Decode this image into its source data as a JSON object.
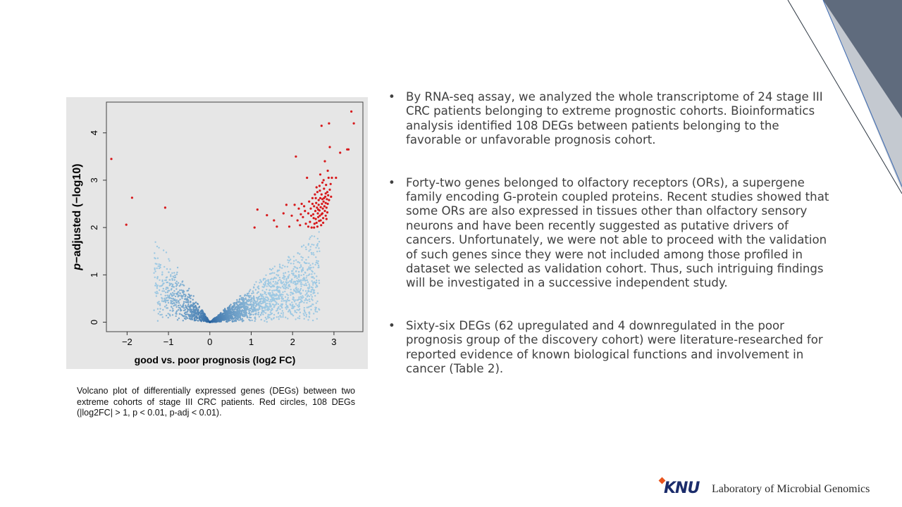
{
  "chart_data": {
    "type": "scatter",
    "title": "",
    "xlabel": "good vs. poor prognosis (log2 FC)",
    "ylabel": "p−adjusted (−log10)",
    "ylabel_italic_part": "p",
    "ylabel_rest": "−adjusted (−log10)",
    "xlim": [
      -2.5,
      3.7
    ],
    "ylim": [
      -0.2,
      4.65
    ],
    "x_ticks": [
      -2,
      -1,
      0,
      1,
      2,
      3
    ],
    "x_tick_labels": [
      "−2",
      "−1",
      "0",
      "1",
      "2",
      "3"
    ],
    "y_ticks": [
      0,
      1,
      2,
      3,
      4
    ],
    "y_tick_labels": [
      "0",
      "1",
      "2",
      "3",
      "4"
    ],
    "grid": false,
    "legend": "none",
    "colors": {
      "non_significant_light": "#9ec9e3",
      "non_significant_dark": "#1f5a99",
      "significant": "#d7191c",
      "panel_background": "#e6e6e6"
    },
    "series": [
      {
        "name": "Red circles, 108 DEGs",
        "color": "#d7191c",
        "points": [
          [
            -2.38,
            3.45
          ],
          [
            -2.02,
            2.06
          ],
          [
            -1.88,
            2.63
          ],
          [
            -1.08,
            2.42
          ],
          [
            1.08,
            2.0
          ],
          [
            1.15,
            2.38
          ],
          [
            1.38,
            2.26
          ],
          [
            1.55,
            2.15
          ],
          [
            1.62,
            2.02
          ],
          [
            1.78,
            2.3
          ],
          [
            1.85,
            2.48
          ],
          [
            1.92,
            2.02
          ],
          [
            1.98,
            2.25
          ],
          [
            2.05,
            2.48
          ],
          [
            2.08,
            3.5
          ],
          [
            2.12,
            2.15
          ],
          [
            2.15,
            2.4
          ],
          [
            2.18,
            2.05
          ],
          [
            2.22,
            2.5
          ],
          [
            2.25,
            2.22
          ],
          [
            2.28,
            2.45
          ],
          [
            2.32,
            2.08
          ],
          [
            2.35,
            3.05
          ],
          [
            2.38,
            2.3
          ],
          [
            2.4,
            2.55
          ],
          [
            2.42,
            2.12
          ],
          [
            2.44,
            2.4
          ],
          [
            2.46,
            2.0
          ],
          [
            2.48,
            2.62
          ],
          [
            2.5,
            2.28
          ],
          [
            2.51,
            2.2
          ],
          [
            2.52,
            2.45
          ],
          [
            2.53,
            2.08
          ],
          [
            2.54,
            2.7
          ],
          [
            2.55,
            2.35
          ],
          [
            2.56,
            2.18
          ],
          [
            2.57,
            2.52
          ],
          [
            2.58,
            2.1
          ],
          [
            2.59,
            2.42
          ],
          [
            2.6,
            2.75
          ],
          [
            2.61,
            2.3
          ],
          [
            2.62,
            2.22
          ],
          [
            2.63,
            2.58
          ],
          [
            2.63,
            2.48
          ],
          [
            2.64,
            2.14
          ],
          [
            2.65,
            2.88
          ],
          [
            2.65,
            2.36
          ],
          [
            2.66,
            2.25
          ],
          [
            2.67,
            2.62
          ],
          [
            2.67,
            3.12
          ],
          [
            2.68,
            2.43
          ],
          [
            2.69,
            2.05
          ],
          [
            2.7,
            4.15
          ],
          [
            2.7,
            2.7
          ],
          [
            2.71,
            2.5
          ],
          [
            2.72,
            2.3
          ],
          [
            2.72,
            2.95
          ],
          [
            2.73,
            2.4
          ],
          [
            2.74,
            2.2
          ],
          [
            2.75,
            3.0
          ],
          [
            2.75,
            2.55
          ],
          [
            2.76,
            2.82
          ],
          [
            2.77,
            2.45
          ],
          [
            2.78,
            3.4
          ],
          [
            2.78,
            2.35
          ],
          [
            2.79,
            2.65
          ],
          [
            2.8,
            2.25
          ],
          [
            2.8,
            2.52
          ],
          [
            2.81,
            2.9
          ],
          [
            2.82,
            2.42
          ],
          [
            2.83,
            2.6
          ],
          [
            2.84,
            2.75
          ],
          [
            2.85,
            3.2
          ],
          [
            2.85,
            2.5
          ],
          [
            2.86,
            2.68
          ],
          [
            2.87,
            3.05
          ],
          [
            2.88,
            2.58
          ],
          [
            2.88,
            4.2
          ],
          [
            2.9,
            2.8
          ],
          [
            2.9,
            3.7
          ],
          [
            2.92,
            2.92
          ],
          [
            2.93,
            2.65
          ],
          [
            2.95,
            3.05
          ],
          [
            3.05,
            3.05
          ],
          [
            3.15,
            3.58
          ],
          [
            3.32,
            3.65
          ],
          [
            3.35,
            3.65
          ],
          [
            3.42,
            4.45
          ],
          [
            3.48,
            4.2
          ],
          [
            2.52,
            2.0
          ],
          [
            2.6,
            2.02
          ],
          [
            2.68,
            2.15
          ],
          [
            2.74,
            2.1
          ],
          [
            2.82,
            2.18
          ],
          [
            2.45,
            2.25
          ],
          [
            2.38,
            2.02
          ],
          [
            2.3,
            2.35
          ],
          [
            2.2,
            2.28
          ],
          [
            2.62,
            2.38
          ],
          [
            2.7,
            2.28
          ],
          [
            2.76,
            2.62
          ],
          [
            2.84,
            2.32
          ],
          [
            2.56,
            2.62
          ],
          [
            2.48,
            2.5
          ],
          [
            2.66,
            2.78
          ],
          [
            2.58,
            2.85
          ],
          [
            2.72,
            2.6
          ],
          [
            2.8,
            2.72
          ]
        ]
      }
    ],
    "non_significant_points_note": "dense cloud of ~thousands of genes forming a V shape centered at (0, 0), below p-adj 2"
  },
  "caption": "Volcano plot of differentially expressed genes (DEGs) between two extreme cohorts of stage III CRC patients. Red circles, 108 DEGs (|log2FC| > 1, p < 0.01, p-adj < 0.01).",
  "bullets": [
    "By RNA-seq assay, we analyzed the whole transcriptome of 24 stage III CRC patients belonging to extreme prognostic cohorts. Bioinformatics analysis identified 108 DEGs between patients belonging to the favorable or unfavorable prognosis cohort.",
    "Forty-two genes belonged to olfactory receptors (ORs), a supergene family encoding G-protein coupled proteins. Recent studies showed that some ORs are also expressed in tissues other than olfactory sensory neurons and have been recently suggested as putative drivers of cancers. Unfortunately, we were not able to proceed with the validation of such genes since they were not included among those profiled in dataset we selected as validation cohort. Thus, such intriguing findings will be investigated in a successive independent study.",
    "Sixty-six DEGs (62 upregulated and 4 downregulated in the poor prognosis group of the discovery cohort) were literature-researched for reported evidence of known biological functions and involvement in cancer (Table 2)."
  ],
  "footer": {
    "logo_text": "KNU",
    "lab_name": "Laboratory of Microbial Genomics"
  },
  "decoration": {
    "corner_dark": "#5f6b7d",
    "corner_light": "#c4c9d0",
    "line_blue": "#3d6bb3",
    "line_dark": "#2b3540"
  }
}
